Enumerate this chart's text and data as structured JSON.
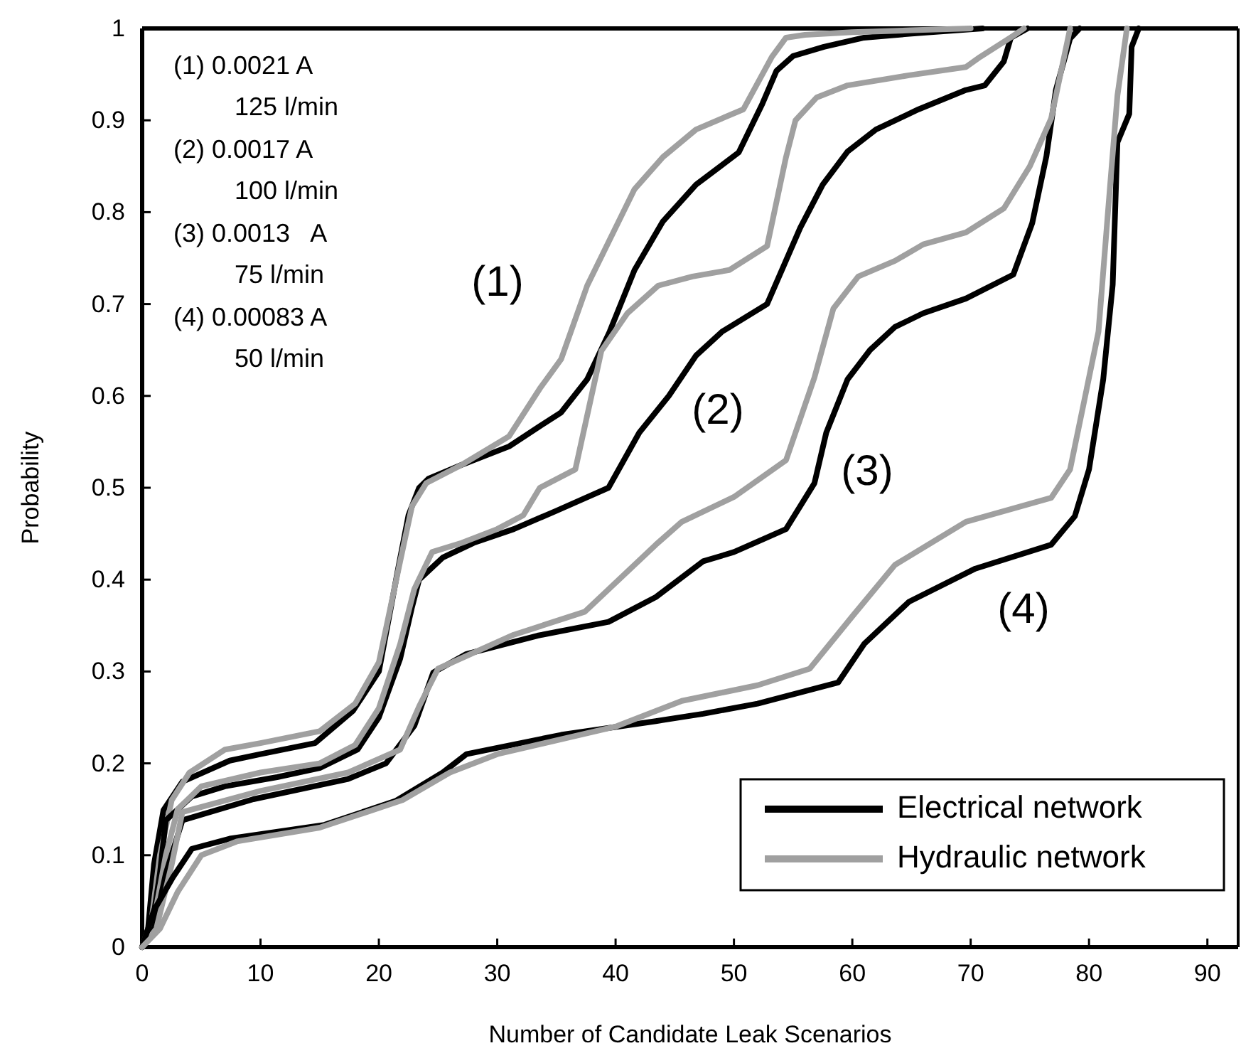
{
  "chart_data": {
    "type": "line",
    "xlabel": "Number of Candidate Leak Scenarios",
    "ylabel": "Probability",
    "xlim": [
      0,
      92.6
    ],
    "ylim": [
      0,
      1
    ],
    "xticks": [
      0,
      10,
      20,
      30,
      40,
      50,
      60,
      70,
      80,
      90
    ],
    "yticks": [
      0,
      {
        "value": 0.1,
        "label": "0.1"
      },
      {
        "value": 0.2,
        "label": "0.2"
      },
      {
        "value": 0.3,
        "label": "0.3"
      },
      {
        "value": 0.4,
        "label": "0.4"
      },
      {
        "value": 0.5,
        "label": "0.5"
      },
      {
        "value": 0.6,
        "label": "0.6"
      },
      {
        "value": 0.7,
        "label": "0.7"
      },
      {
        "value": 0.8,
        "label": "0.8"
      },
      {
        "value": 0.9,
        "label": "0.9"
      },
      1
    ],
    "legend": "bottom right",
    "annotations": [
      "(1) 0.0021 A\n125 l/min",
      "(2) 0.0017 A\n100 l/min",
      "(3) 0.0013   A\n75 l/min",
      "(4) 0.00083 A\n50 l/min",
      "(1)",
      "(2)",
      "(3)",
      "(4)"
    ],
    "series": [
      {
        "name": "Electrical network",
        "color": "#000000",
        "x": [
          0,
          0.5,
          1,
          1.8,
          3.4,
          7.4,
          10,
          14.6,
          17.8,
          20,
          21.6,
          22.5,
          23.4,
          24.2,
          27,
          31,
          33.6,
          35.4,
          37.6,
          39.5,
          41.6,
          44,
          46.8,
          50.4,
          52.4,
          53.6,
          55,
          57.6,
          61,
          65.6,
          71
        ],
        "values": [
          0,
          0.02,
          0.09,
          0.149,
          0.18,
          0.203,
          0.21,
          0.222,
          0.257,
          0.3,
          0.41,
          0.47,
          0.5,
          0.51,
          0.525,
          0.545,
          0.567,
          0.582,
          0.618,
          0.67,
          0.737,
          0.79,
          0.83,
          0.865,
          0.918,
          0.954,
          0.97,
          0.98,
          0.99,
          0.995,
          1
        ]
      },
      {
        "name": "Hydraulic network",
        "color": "#a0a0a0",
        "x": [
          0,
          0.8,
          1.5,
          2.5,
          4,
          7,
          10,
          15,
          18,
          20,
          21.8,
          22.8,
          24,
          27,
          31,
          33.6,
          35.4,
          37.6,
          39.5,
          41.6,
          44,
          46.8,
          50.8,
          53.2,
          54.4,
          56,
          60,
          65,
          70
        ],
        "values": [
          0,
          0.03,
          0.1,
          0.16,
          0.19,
          0.215,
          0.222,
          0.235,
          0.265,
          0.31,
          0.42,
          0.48,
          0.505,
          0.525,
          0.556,
          0.608,
          0.64,
          0.72,
          0.77,
          0.825,
          0.86,
          0.89,
          0.912,
          0.969,
          0.99,
          0.993,
          0.996,
          0.998,
          1
        ]
      },
      {
        "color": "#000000",
        "x": [
          0,
          0.8,
          1.5,
          2,
          4.2,
          7,
          11.4,
          15,
          18.2,
          20,
          21.8,
          22.8,
          23.4,
          25.4,
          28,
          31.4,
          35,
          39.4,
          42,
          44.5,
          46.8,
          49,
          52.8,
          55.6,
          57.5,
          59.6,
          62,
          65.6,
          69.6,
          71.2,
          72.8,
          73.4,
          74.8
        ],
        "values": [
          0,
          0.02,
          0.08,
          0.138,
          0.164,
          0.175,
          0.185,
          0.195,
          0.215,
          0.25,
          0.314,
          0.37,
          0.4,
          0.424,
          0.44,
          0.455,
          0.475,
          0.5,
          0.56,
          0.6,
          0.644,
          0.67,
          0.7,
          0.783,
          0.83,
          0.866,
          0.89,
          0.912,
          0.933,
          0.938,
          0.964,
          0.99,
          1
        ]
      },
      {
        "color": "#a0a0a0",
        "x": [
          0,
          1,
          2,
          3,
          5,
          10,
          15,
          18,
          20,
          21.8,
          23,
          24.5,
          27,
          30,
          32.2,
          33.6,
          36.6,
          38.8,
          41,
          43.6,
          46.5,
          49.6,
          52.8,
          54.4,
          55.2,
          57,
          59.6,
          64.8,
          69.6,
          70.8,
          73.6,
          74.5
        ],
        "values": [
          0,
          0.03,
          0.1,
          0.15,
          0.175,
          0.19,
          0.2,
          0.22,
          0.26,
          0.33,
          0.39,
          0.43,
          0.44,
          0.455,
          0.47,
          0.5,
          0.52,
          0.649,
          0.69,
          0.72,
          0.73,
          0.737,
          0.763,
          0.86,
          0.9,
          0.925,
          0.938,
          0.949,
          0.958,
          0.969,
          0.992,
          1
        ]
      },
      {
        "color": "#000000",
        "x": [
          0,
          1,
          2,
          3.4,
          9.4,
          17.4,
          20.6,
          23,
          24.6,
          27.4,
          33.4,
          39.4,
          43.4,
          47.4,
          50,
          54.4,
          56.8,
          57.8,
          59.6,
          61.5,
          63.6,
          66,
          69.6,
          73.6,
          75.2,
          76.4,
          77.2,
          78.4,
          79.2
        ],
        "values": [
          0,
          0.02,
          0.08,
          0.138,
          0.161,
          0.183,
          0.2,
          0.241,
          0.299,
          0.319,
          0.339,
          0.354,
          0.381,
          0.42,
          0.43,
          0.455,
          0.505,
          0.56,
          0.618,
          0.65,
          0.675,
          0.69,
          0.706,
          0.732,
          0.788,
          0.861,
          0.933,
          0.989,
          1
        ]
      },
      {
        "color": "#a0a0a0",
        "x": [
          0,
          1.2,
          2.5,
          3.4,
          10,
          17.4,
          21.8,
          23.4,
          25,
          31.4,
          37.4,
          43.4,
          45.6,
          50,
          54.4,
          56.8,
          58.4,
          60.5,
          63.6,
          66,
          69.6,
          72.8,
          75,
          76.8,
          78.4
        ],
        "values": [
          0,
          0.02,
          0.09,
          0.147,
          0.17,
          0.19,
          0.215,
          0.262,
          0.303,
          0.34,
          0.365,
          0.438,
          0.463,
          0.49,
          0.53,
          0.62,
          0.695,
          0.73,
          0.747,
          0.765,
          0.778,
          0.804,
          0.85,
          0.902,
          1
        ]
      },
      {
        "color": "#000000",
        "x": [
          0,
          1,
          2.6,
          4.2,
          7.4,
          15.4,
          21.4,
          25.4,
          27.4,
          35.4,
          43.4,
          47.4,
          52,
          58.8,
          61,
          64.8,
          70.4,
          76.8,
          78.8,
          80,
          81.2,
          82,
          82.4,
          83.4,
          83.6,
          84.2
        ],
        "values": [
          0,
          0.04,
          0.076,
          0.107,
          0.118,
          0.133,
          0.159,
          0.19,
          0.21,
          0.231,
          0.246,
          0.254,
          0.265,
          0.288,
          0.33,
          0.376,
          0.412,
          0.438,
          0.469,
          0.52,
          0.618,
          0.721,
          0.876,
          0.907,
          0.98,
          1
        ]
      },
      {
        "color": "#a0a0a0",
        "x": [
          0,
          1.5,
          3,
          5,
          8,
          15,
          22,
          26,
          30,
          40,
          45.6,
          52,
          56.4,
          60,
          63.6,
          69.6,
          76.8,
          78.4,
          80.8,
          81.6,
          82.4,
          83.2
        ],
        "values": [
          0,
          0.02,
          0.06,
          0.1,
          0.115,
          0.13,
          0.16,
          0.19,
          0.21,
          0.24,
          0.268,
          0.285,
          0.303,
          0.36,
          0.416,
          0.463,
          0.489,
          0.52,
          0.67,
          0.8,
          0.927,
          1
        ]
      }
    ]
  }
}
